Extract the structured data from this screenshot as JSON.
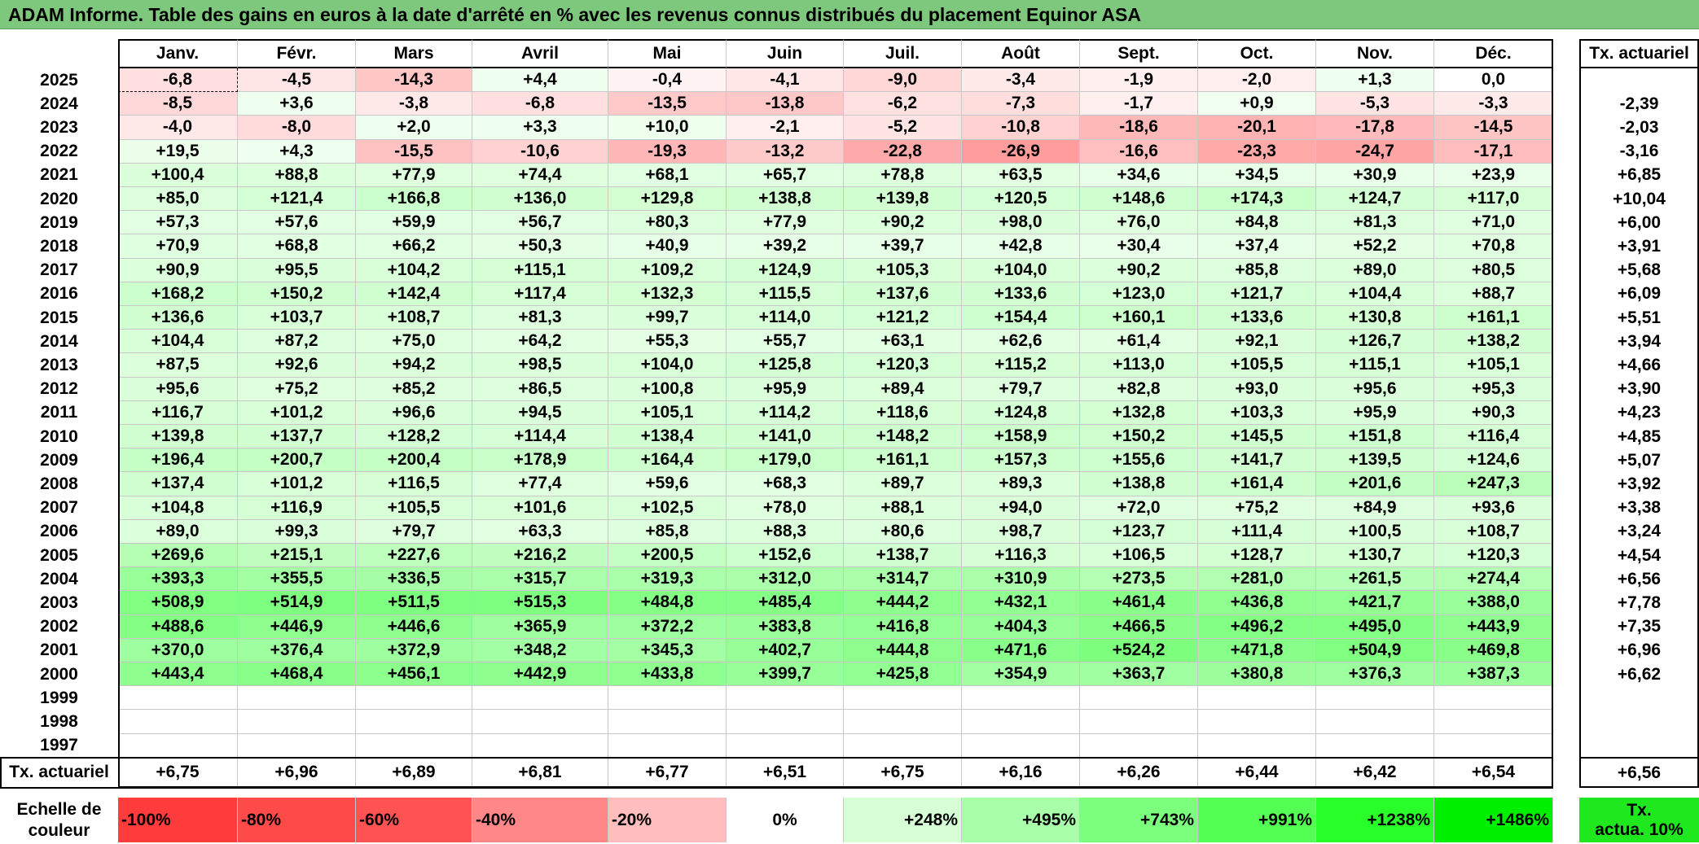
{
  "title": "ADAM Informe. Table des gains en euros à la date d'arrêté en % avec les revenus connus distribués du placement Equinor ASA",
  "months": [
    "Janv.",
    "Févr.",
    "Mars",
    "Avril",
    "Mai",
    "Juin",
    "Juil.",
    "Août",
    "Sept.",
    "Oct.",
    "Nov.",
    "Déc."
  ],
  "tx_header": "Tx. actuariel",
  "rows": [
    {
      "year": "2025",
      "values": [
        "-6,8",
        "-4,5",
        "-14,3",
        "+4,4",
        "-0,4",
        "-4,1",
        "-9,0",
        "-3,4",
        "-1,9",
        "-2,0",
        "+1,3",
        "0,0"
      ],
      "tx": ""
    },
    {
      "year": "2024",
      "values": [
        "-8,5",
        "+3,6",
        "-3,8",
        "-6,8",
        "-13,5",
        "-13,8",
        "-6,2",
        "-7,3",
        "-1,7",
        "+0,9",
        "-5,3",
        "-3,3"
      ],
      "tx": "-2,39"
    },
    {
      "year": "2023",
      "values": [
        "-4,0",
        "-8,0",
        "+2,0",
        "+3,3",
        "+10,0",
        "-2,1",
        "-5,2",
        "-10,8",
        "-18,6",
        "-20,1",
        "-17,8",
        "-14,5"
      ],
      "tx": "-2,03"
    },
    {
      "year": "2022",
      "values": [
        "+19,5",
        "+4,3",
        "-15,5",
        "-10,6",
        "-19,3",
        "-13,2",
        "-22,8",
        "-26,9",
        "-16,6",
        "-23,3",
        "-24,7",
        "-17,1"
      ],
      "tx": "-3,16"
    },
    {
      "year": "2021",
      "values": [
        "+100,4",
        "+88,8",
        "+77,9",
        "+74,4",
        "+68,1",
        "+65,7",
        "+78,8",
        "+63,5",
        "+34,6",
        "+34,5",
        "+30,9",
        "+23,9"
      ],
      "tx": "+6,85"
    },
    {
      "year": "2020",
      "values": [
        "+85,0",
        "+121,4",
        "+166,8",
        "+136,0",
        "+129,8",
        "+138,8",
        "+139,8",
        "+120,5",
        "+148,6",
        "+174,3",
        "+124,7",
        "+117,0"
      ],
      "tx": "+10,04"
    },
    {
      "year": "2019",
      "values": [
        "+57,3",
        "+57,6",
        "+59,9",
        "+56,7",
        "+80,3",
        "+77,9",
        "+90,2",
        "+98,0",
        "+76,0",
        "+84,8",
        "+81,3",
        "+71,0"
      ],
      "tx": "+6,00"
    },
    {
      "year": "2018",
      "values": [
        "+70,9",
        "+68,8",
        "+66,2",
        "+50,3",
        "+40,9",
        "+39,2",
        "+39,7",
        "+42,8",
        "+30,4",
        "+37,4",
        "+52,2",
        "+70,8"
      ],
      "tx": "+3,91"
    },
    {
      "year": "2017",
      "values": [
        "+90,9",
        "+95,5",
        "+104,2",
        "+115,1",
        "+109,2",
        "+124,9",
        "+105,3",
        "+104,0",
        "+90,2",
        "+85,8",
        "+89,0",
        "+80,5"
      ],
      "tx": "+5,68"
    },
    {
      "year": "2016",
      "values": [
        "+168,2",
        "+150,2",
        "+142,4",
        "+117,4",
        "+132,3",
        "+115,5",
        "+137,6",
        "+133,6",
        "+123,0",
        "+121,7",
        "+104,4",
        "+88,7"
      ],
      "tx": "+6,09"
    },
    {
      "year": "2015",
      "values": [
        "+136,6",
        "+103,7",
        "+108,7",
        "+81,3",
        "+99,7",
        "+114,0",
        "+121,2",
        "+154,4",
        "+160,1",
        "+133,6",
        "+130,8",
        "+161,1"
      ],
      "tx": "+5,51"
    },
    {
      "year": "2014",
      "values": [
        "+104,4",
        "+87,2",
        "+75,0",
        "+64,2",
        "+55,3",
        "+55,7",
        "+63,1",
        "+62,6",
        "+61,4",
        "+92,1",
        "+126,7",
        "+138,2"
      ],
      "tx": "+3,94"
    },
    {
      "year": "2013",
      "values": [
        "+87,5",
        "+92,6",
        "+94,2",
        "+98,5",
        "+104,0",
        "+125,8",
        "+120,3",
        "+115,2",
        "+113,0",
        "+105,5",
        "+115,1",
        "+105,1"
      ],
      "tx": "+4,66"
    },
    {
      "year": "2012",
      "values": [
        "+95,6",
        "+75,2",
        "+85,2",
        "+86,5",
        "+100,8",
        "+95,9",
        "+89,4",
        "+79,7",
        "+82,8",
        "+93,0",
        "+95,6",
        "+95,3"
      ],
      "tx": "+3,90"
    },
    {
      "year": "2011",
      "values": [
        "+116,7",
        "+101,2",
        "+96,6",
        "+94,5",
        "+105,1",
        "+114,2",
        "+118,6",
        "+124,8",
        "+132,8",
        "+103,3",
        "+95,9",
        "+90,3"
      ],
      "tx": "+4,23"
    },
    {
      "year": "2010",
      "values": [
        "+139,8",
        "+137,7",
        "+128,2",
        "+114,4",
        "+138,4",
        "+141,0",
        "+148,2",
        "+158,9",
        "+150,2",
        "+145,5",
        "+151,8",
        "+116,4"
      ],
      "tx": "+4,85"
    },
    {
      "year": "2009",
      "values": [
        "+196,4",
        "+200,7",
        "+200,4",
        "+178,9",
        "+164,4",
        "+179,0",
        "+161,1",
        "+157,3",
        "+155,6",
        "+141,7",
        "+139,5",
        "+124,6"
      ],
      "tx": "+5,07"
    },
    {
      "year": "2008",
      "values": [
        "+137,4",
        "+101,2",
        "+116,5",
        "+77,4",
        "+59,6",
        "+68,3",
        "+89,7",
        "+89,3",
        "+138,8",
        "+161,4",
        "+201,6",
        "+247,3"
      ],
      "tx": "+3,92"
    },
    {
      "year": "2007",
      "values": [
        "+104,8",
        "+116,9",
        "+105,5",
        "+101,6",
        "+102,5",
        "+78,0",
        "+88,1",
        "+94,0",
        "+72,0",
        "+75,2",
        "+84,9",
        "+93,6"
      ],
      "tx": "+3,38"
    },
    {
      "year": "2006",
      "values": [
        "+89,0",
        "+99,3",
        "+79,7",
        "+63,3",
        "+85,8",
        "+88,3",
        "+80,6",
        "+98,7",
        "+123,7",
        "+111,4",
        "+100,5",
        "+108,7"
      ],
      "tx": "+3,24"
    },
    {
      "year": "2005",
      "values": [
        "+269,6",
        "+215,1",
        "+227,6",
        "+216,2",
        "+200,5",
        "+152,6",
        "+138,7",
        "+116,3",
        "+106,5",
        "+128,7",
        "+130,7",
        "+120,3"
      ],
      "tx": "+4,54"
    },
    {
      "year": "2004",
      "values": [
        "+393,3",
        "+355,5",
        "+336,5",
        "+315,7",
        "+319,3",
        "+312,0",
        "+314,7",
        "+310,9",
        "+273,5",
        "+281,0",
        "+261,5",
        "+274,4"
      ],
      "tx": "+6,56"
    },
    {
      "year": "2003",
      "values": [
        "+508,9",
        "+514,9",
        "+511,5",
        "+515,3",
        "+484,8",
        "+485,4",
        "+444,2",
        "+432,1",
        "+461,4",
        "+436,8",
        "+421,7",
        "+388,0"
      ],
      "tx": "+7,78"
    },
    {
      "year": "2002",
      "values": [
        "+488,6",
        "+446,9",
        "+446,6",
        "+365,9",
        "+372,2",
        "+383,8",
        "+416,8",
        "+404,3",
        "+466,5",
        "+496,2",
        "+495,0",
        "+443,9"
      ],
      "tx": "+7,35"
    },
    {
      "year": "2001",
      "values": [
        "+370,0",
        "+376,4",
        "+372,9",
        "+348,2",
        "+345,3",
        "+402,7",
        "+444,8",
        "+471,6",
        "+524,2",
        "+471,8",
        "+504,9",
        "+469,8"
      ],
      "tx": "+6,96"
    },
    {
      "year": "2000",
      "values": [
        "+443,4",
        "+468,4",
        "+456,1",
        "+442,9",
        "+433,8",
        "+399,7",
        "+425,8",
        "+354,9",
        "+363,7",
        "+380,8",
        "+376,3",
        "+387,3"
      ],
      "tx": "+6,62"
    },
    {
      "year": "1999",
      "values": [
        "",
        "",
        "",
        "",
        "",
        "",
        "",
        "",
        "",
        "",
        "",
        ""
      ],
      "tx": ""
    },
    {
      "year": "1998",
      "values": [
        "",
        "",
        "",
        "",
        "",
        "",
        "",
        "",
        "",
        "",
        "",
        ""
      ],
      "tx": ""
    },
    {
      "year": "1997",
      "values": [
        "",
        "",
        "",
        "",
        "",
        "",
        "",
        "",
        "",
        "",
        "",
        ""
      ],
      "tx": ""
    }
  ],
  "summary": {
    "label": "Tx. actuariel",
    "values": [
      "+6,75",
      "+6,96",
      "+6,89",
      "+6,81",
      "+6,77",
      "+6,51",
      "+6,75",
      "+6,16",
      "+6,26",
      "+6,44",
      "+6,42",
      "+6,54"
    ],
    "total": "+6,56"
  },
  "legend": {
    "label_line1": "Echelle de",
    "label_line2": "couleur",
    "items": [
      {
        "text": "-100%",
        "color": "#ff3b3b",
        "align": "left"
      },
      {
        "text": "-80%",
        "color": "#ff4a4a",
        "align": "left"
      },
      {
        "text": "-60%",
        "color": "#ff5252",
        "align": "left"
      },
      {
        "text": "-40%",
        "color": "#ff8787",
        "align": "left"
      },
      {
        "text": "-20%",
        "color": "#ffbdbd",
        "align": "left"
      },
      {
        "text": "0%",
        "color": "#ffffff",
        "align": "center"
      },
      {
        "text": "+248%",
        "color": "#d6ffd6",
        "align": "right"
      },
      {
        "text": "+495%",
        "color": "#a9ffa9",
        "align": "right"
      },
      {
        "text": "+743%",
        "color": "#7cff7c",
        "align": "right"
      },
      {
        "text": "+991%",
        "color": "#52ff52",
        "align": "right"
      },
      {
        "text": "+1238%",
        "color": "#29ff29",
        "align": "right"
      },
      {
        "text": "+1486%",
        "color": "#00f000",
        "align": "right"
      }
    ],
    "tx_line1": "Tx.",
    "tx_line2": "actua. 10%",
    "tx_color": "#1fe81f"
  }
}
